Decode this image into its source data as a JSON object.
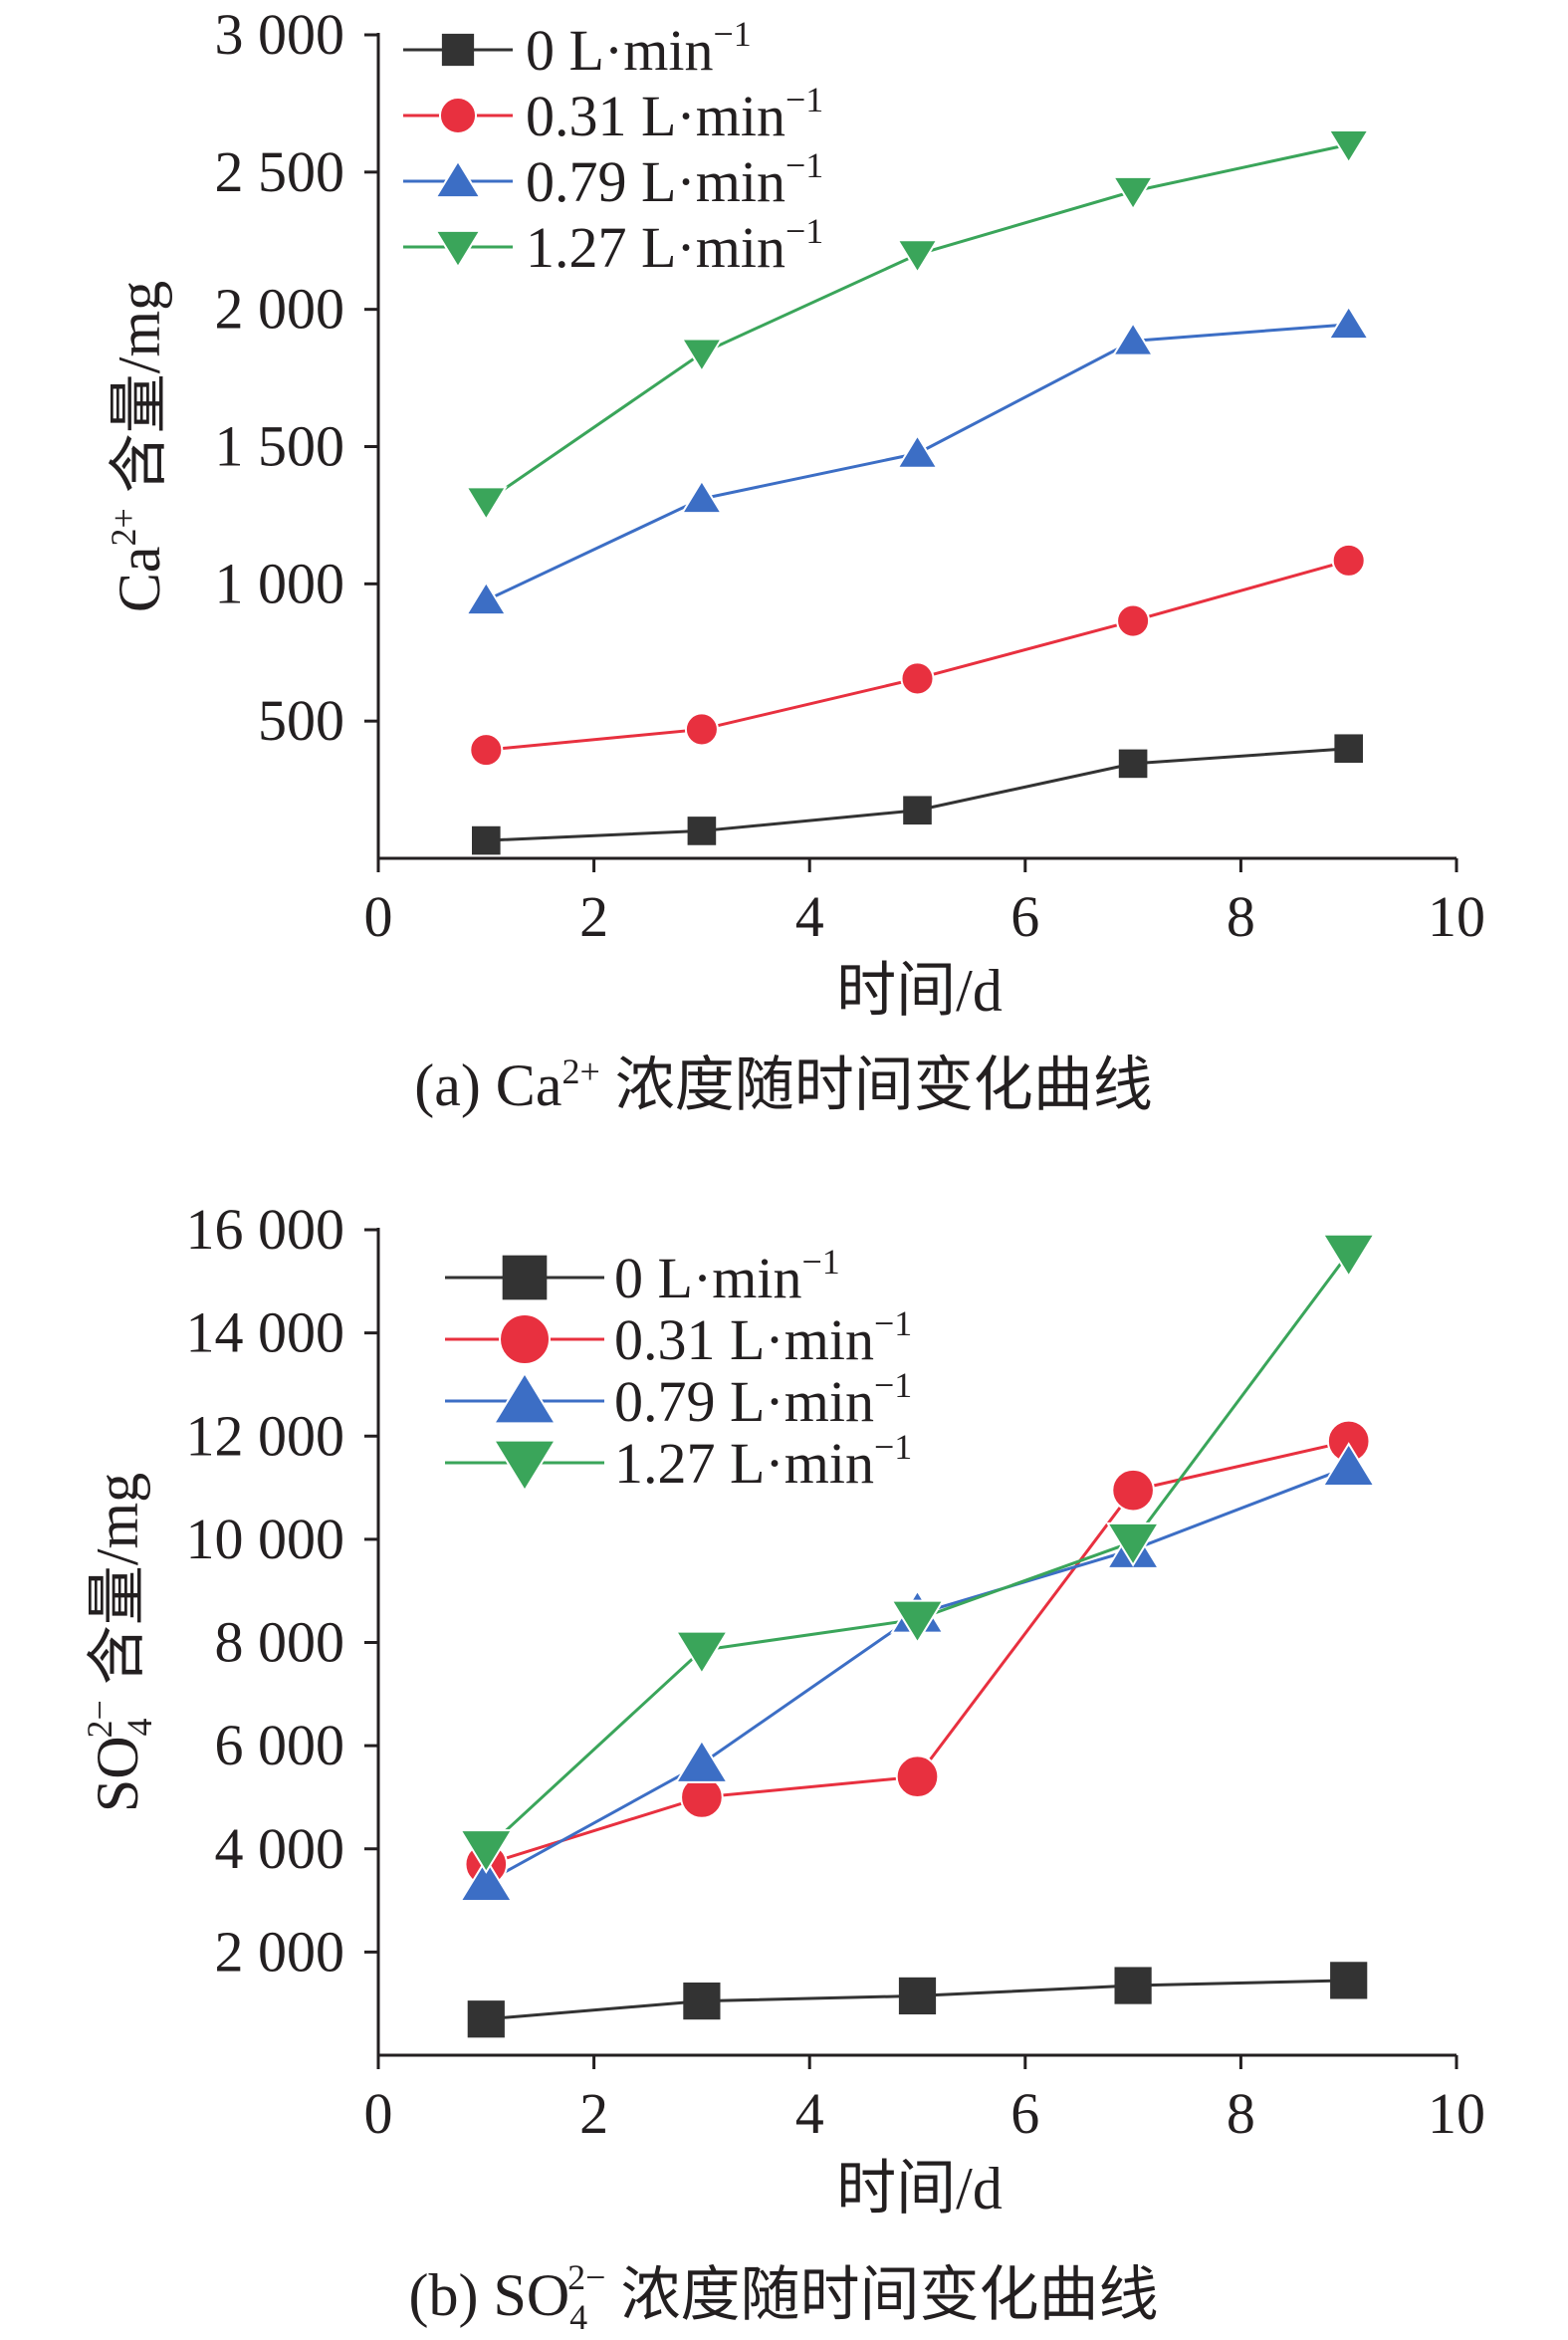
{
  "colors": {
    "axis": "#231f20",
    "text": "#231f20",
    "marker_stroke": "#ffffff"
  },
  "chart_data": [
    {
      "id": "a",
      "type": "line",
      "title": "",
      "caption": {
        "prefix": "(a) Ca",
        "sup": "2+",
        "suffix": " 浓度随时间变化曲线"
      },
      "xlabel": "时间/d",
      "ylabel": {
        "main": "Ca",
        "sup": "2+",
        "suffix": " 含量/mg"
      },
      "xlim": [
        0,
        10
      ],
      "ylim": [
        0,
        3000
      ],
      "xticks": [
        0,
        2,
        4,
        6,
        8,
        10
      ],
      "xtick_labels": [
        "0",
        "2",
        "4",
        "6",
        "8",
        "10"
      ],
      "yticks": [
        500,
        1000,
        1500,
        2000,
        2500,
        3000
      ],
      "ytick_labels": [
        "500",
        "1 000",
        "1 500",
        "2 000",
        "2 500",
        "3 000"
      ],
      "grid": false,
      "legend_position": "top-left",
      "x": [
        1,
        3,
        5,
        7,
        9
      ],
      "series": [
        {
          "name": "0 L·min⁻¹",
          "label": "0 L·min",
          "unit_sup": "−1",
          "color": "#333333",
          "marker": "square",
          "values": [
            65,
            100,
            175,
            345,
            400
          ]
        },
        {
          "name": "0.31 L·min⁻¹",
          "label": "0.31 L·min",
          "unit_sup": "−1",
          "color": "#e8303f",
          "marker": "circle",
          "values": [
            395,
            470,
            655,
            865,
            1085
          ]
        },
        {
          "name": "0.79 L·min⁻¹",
          "label": "0.79 L·min",
          "unit_sup": "−1",
          "color": "#3c6ec5",
          "marker": "triangle-up",
          "values": [
            940,
            1310,
            1475,
            1885,
            1945
          ]
        },
        {
          "name": "1.27 L·min⁻¹",
          "label": "1.27 L·min",
          "unit_sup": "−1",
          "color": "#3aa55a",
          "marker": "triangle-down",
          "values": [
            1300,
            1840,
            2200,
            2430,
            2600
          ]
        }
      ]
    },
    {
      "id": "b",
      "type": "line",
      "title": "",
      "caption": {
        "prefix": "(b) SO",
        "sub": "4",
        "sup": "2−",
        "suffix": " 浓度随时间变化曲线"
      },
      "xlabel": "时间/d",
      "ylabel": {
        "main": "SO",
        "sub": "4",
        "sup": "2−",
        "suffix": " 含量/mg"
      },
      "xlim": [
        0,
        10
      ],
      "ylim": [
        0,
        16000
      ],
      "xticks": [
        0,
        2,
        4,
        6,
        8,
        10
      ],
      "xtick_labels": [
        "0",
        "2",
        "4",
        "6",
        "8",
        "10"
      ],
      "yticks": [
        2000,
        4000,
        6000,
        8000,
        10000,
        12000,
        14000,
        16000
      ],
      "ytick_labels": [
        "2 000",
        "4 000",
        "6 000",
        "8 000",
        "10 000",
        "12 000",
        "14 000",
        "16 000"
      ],
      "grid": false,
      "legend_position": "top-left",
      "x": [
        1,
        3,
        5,
        7,
        9
      ],
      "series": [
        {
          "name": "0 L·min⁻¹",
          "label": "0 L·min",
          "unit_sup": "−1",
          "color": "#333333",
          "marker": "square",
          "values": [
            700,
            1050,
            1150,
            1350,
            1450
          ]
        },
        {
          "name": "0.31 L·min⁻¹",
          "label": "0.31 L·min",
          "unit_sup": "−1",
          "color": "#e8303f",
          "marker": "circle",
          "values": [
            3700,
            5000,
            5400,
            10950,
            11900
          ]
        },
        {
          "name": "0.79 L·min⁻¹",
          "label": "0.79 L·min",
          "unit_sup": "−1",
          "color": "#3c6ec5",
          "marker": "triangle-up",
          "values": [
            3350,
            5650,
            8550,
            9800,
            11400
          ]
        },
        {
          "name": "1.27 L·min⁻¹",
          "label": "1.27 L·min",
          "unit_sup": "−1",
          "color": "#3aa55a",
          "marker": "triangle-down",
          "values": [
            4000,
            7850,
            8450,
            9950,
            15550
          ]
        }
      ]
    }
  ]
}
